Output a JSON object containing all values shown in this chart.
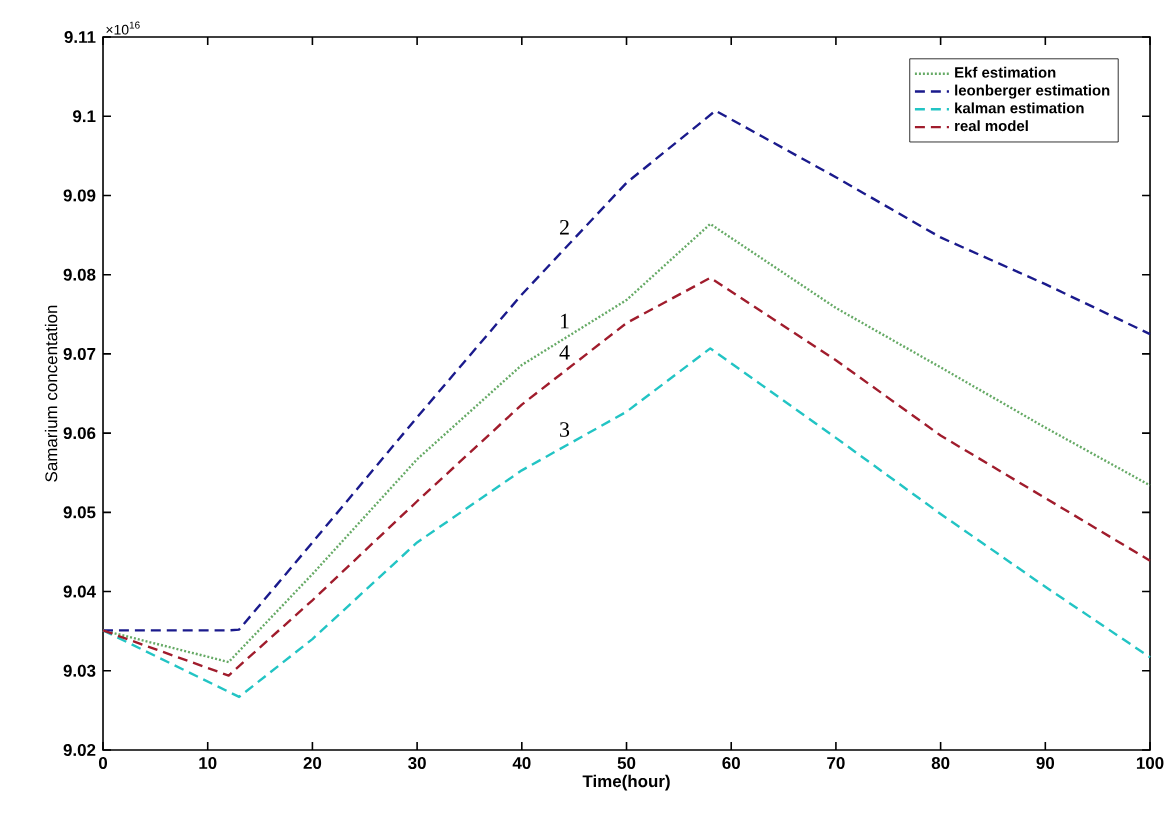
{
  "chart_data": {
    "type": "line",
    "xlabel": "Time(hour)",
    "ylabel": "Samarium concentation",
    "xlim": [
      0,
      100
    ],
    "ylim": [
      9.02,
      9.11
    ],
    "xticks": [
      0,
      10,
      20,
      30,
      40,
      50,
      60,
      70,
      80,
      90,
      100
    ],
    "yticks": [
      9.02,
      9.03,
      9.04,
      9.05,
      9.06,
      9.07,
      9.08,
      9.09,
      9.1,
      9.11
    ],
    "grid": false,
    "legend": "top right",
    "marker": "none",
    "x": [
      0,
      12,
      13,
      20,
      30,
      40,
      50,
      58,
      58.5,
      70,
      80,
      90,
      100
    ],
    "series": [
      {
        "name": "Ekf estimation",
        "color": "#66aa66",
        "line_style": "dotted",
        "values": [
          9.0351,
          9.0311,
          null,
          9.0422,
          9.0567,
          9.0686,
          9.0768,
          9.0864,
          null,
          9.0758,
          9.0683,
          9.0607,
          9.0534
        ]
      },
      {
        "name": "leonberger estimation",
        "color": "#1a1a8c",
        "line_style": "dashed",
        "values": [
          9.0351,
          9.0351,
          9.0352,
          9.0462,
          9.062,
          9.0775,
          9.0916,
          null,
          9.1007,
          9.0923,
          9.0847,
          9.0788,
          9.0725
        ]
      },
      {
        "name": "kalman estimation",
        "color": "#22c4c4",
        "line_style": "dashed",
        "values": [
          9.0351,
          null,
          9.0267,
          9.034,
          9.0462,
          9.0553,
          9.0627,
          9.0707,
          null,
          9.0594,
          9.0498,
          9.0406,
          9.0317
        ]
      },
      {
        "name": "real model",
        "color": "#a01c2c",
        "line_style": "dashed",
        "values": [
          9.0351,
          9.0294,
          null,
          9.0389,
          9.0514,
          9.0636,
          9.0739,
          9.0796,
          null,
          9.0692,
          9.0597,
          9.0518,
          9.0439
        ]
      }
    ],
    "annotations": [
      "×10$^{16}$",
      "1",
      "2",
      "3",
      "4"
    ]
  }
}
